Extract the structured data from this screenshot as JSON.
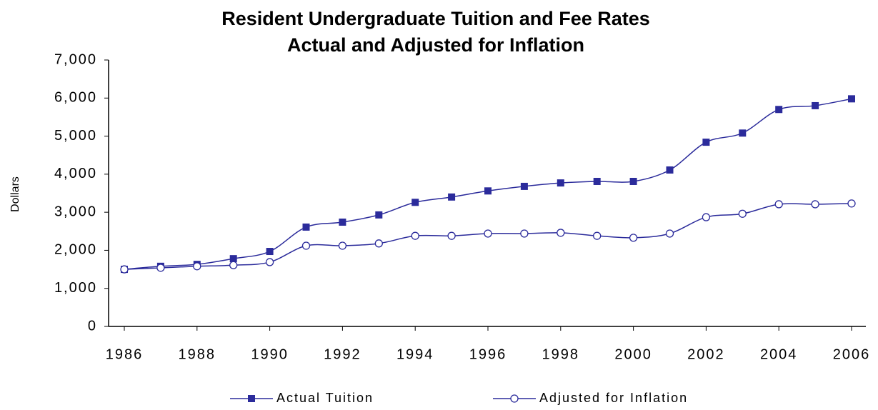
{
  "chart_data": {
    "type": "line",
    "title": "Resident Undergraduate Tuition and Fee Rates",
    "subtitle": "Actual and Adjusted for Inflation",
    "y_label": "Dollars",
    "x": [
      1986,
      1987,
      1988,
      1989,
      1990,
      1991,
      1992,
      1993,
      1994,
      1995,
      1996,
      1997,
      1998,
      1999,
      2000,
      2001,
      2002,
      2003,
      2004,
      2005,
      2006
    ],
    "series": [
      {
        "name": "Actual Tuition",
        "color": "#2b2b9b",
        "marker": "square",
        "values": [
          1500,
          1580,
          1630,
          1780,
          1970,
          2610,
          2740,
          2930,
          3260,
          3400,
          3560,
          3680,
          3770,
          3810,
          3810,
          4110,
          4840,
          5080,
          5700,
          5800,
          5980
        ]
      },
      {
        "name": "Adjusted for Inflation",
        "color": "#2b2b9b",
        "marker": "circle",
        "values": [
          1500,
          1540,
          1580,
          1610,
          1690,
          2120,
          2120,
          2180,
          2380,
          2380,
          2440,
          2440,
          2460,
          2380,
          2330,
          2440,
          2870,
          2960,
          3210,
          3210,
          3230
        ]
      }
    ],
    "xlim": [
      1986,
      2006
    ],
    "xticks": [
      1986,
      1988,
      1990,
      1992,
      1994,
      1996,
      1998,
      2000,
      2002,
      2004,
      2006
    ],
    "ylim": [
      0,
      7000
    ],
    "yticks": [
      0,
      {
        "value": 1000,
        "label": "1,000"
      },
      {
        "value": 2000,
        "label": "2,000"
      },
      {
        "value": 3000,
        "label": "3,000"
      },
      {
        "value": 4000,
        "label": "4,000"
      },
      {
        "value": 5000,
        "label": "5,000"
      },
      {
        "value": 6000,
        "label": "6,000"
      },
      {
        "value": 7000,
        "label": "7,000"
      }
    ],
    "grid": false,
    "legend": "bottom"
  }
}
